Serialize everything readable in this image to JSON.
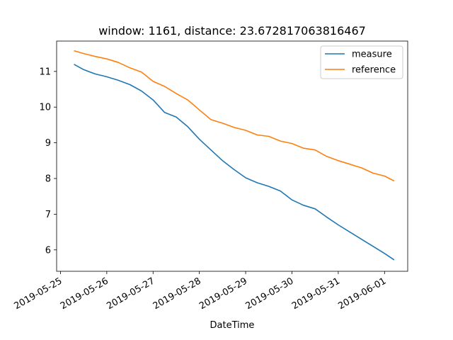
{
  "chart_data": {
    "type": "line",
    "title": "window: 1161, distance: 23.672817063816467",
    "xlabel": "DateTime",
    "ylabel": "",
    "x_ticks": [
      "2019-05-25",
      "2019-05-26",
      "2019-05-27",
      "2019-05-28",
      "2019-05-29",
      "2019-05-30",
      "2019-05-31",
      "2019-06-01"
    ],
    "y_ticks": [
      "6",
      "7",
      "8",
      "9",
      "10",
      "11"
    ],
    "xlim": [
      "2019-05-24T22:00",
      "2019-06-01T12:00"
    ],
    "ylim": [
      5.4,
      11.85
    ],
    "grid": false,
    "legend": "top-right",
    "series": [
      {
        "name": "measure",
        "color": "#1f77b4",
        "points": [
          [
            "2019-05-25T07:00",
            11.2
          ],
          [
            "2019-05-25T12:00",
            11.05
          ],
          [
            "2019-05-25T18:00",
            10.93
          ],
          [
            "2019-05-26T00:00",
            10.85
          ],
          [
            "2019-05-26T06:00",
            10.75
          ],
          [
            "2019-05-26T12:00",
            10.63
          ],
          [
            "2019-05-26T18:00",
            10.45
          ],
          [
            "2019-05-27T00:00",
            10.2
          ],
          [
            "2019-05-27T06:00",
            9.85
          ],
          [
            "2019-05-27T12:00",
            9.72
          ],
          [
            "2019-05-27T18:00",
            9.45
          ],
          [
            "2019-05-28T00:00",
            9.1
          ],
          [
            "2019-05-28T06:00",
            8.8
          ],
          [
            "2019-05-28T12:00",
            8.5
          ],
          [
            "2019-05-28T18:00",
            8.25
          ],
          [
            "2019-05-29T00:00",
            8.02
          ],
          [
            "2019-05-29T06:00",
            7.88
          ],
          [
            "2019-05-29T12:00",
            7.78
          ],
          [
            "2019-05-29T18:00",
            7.65
          ],
          [
            "2019-05-30T00:00",
            7.4
          ],
          [
            "2019-05-30T06:00",
            7.25
          ],
          [
            "2019-05-30T12:00",
            7.15
          ],
          [
            "2019-05-30T18:00",
            6.92
          ],
          [
            "2019-05-31T00:00",
            6.7
          ],
          [
            "2019-05-31T06:00",
            6.5
          ],
          [
            "2019-05-31T12:00",
            6.3
          ],
          [
            "2019-05-31T18:00",
            6.1
          ],
          [
            "2019-06-01T00:00",
            5.9
          ],
          [
            "2019-06-01T05:00",
            5.72
          ]
        ]
      },
      {
        "name": "reference",
        "color": "#ff7f0e",
        "points": [
          [
            "2019-05-25T07:00",
            11.58
          ],
          [
            "2019-05-25T12:00",
            11.5
          ],
          [
            "2019-05-25T18:00",
            11.42
          ],
          [
            "2019-05-26T00:00",
            11.35
          ],
          [
            "2019-05-26T06:00",
            11.25
          ],
          [
            "2019-05-26T12:00",
            11.1
          ],
          [
            "2019-05-26T18:00",
            10.98
          ],
          [
            "2019-05-27T00:00",
            10.72
          ],
          [
            "2019-05-27T06:00",
            10.58
          ],
          [
            "2019-05-27T12:00",
            10.38
          ],
          [
            "2019-05-27T18:00",
            10.2
          ],
          [
            "2019-05-28T00:00",
            9.92
          ],
          [
            "2019-05-28T06:00",
            9.65
          ],
          [
            "2019-05-28T12:00",
            9.55
          ],
          [
            "2019-05-28T18:00",
            9.43
          ],
          [
            "2019-05-29T00:00",
            9.35
          ],
          [
            "2019-05-29T06:00",
            9.22
          ],
          [
            "2019-05-29T12:00",
            9.18
          ],
          [
            "2019-05-29T18:00",
            9.05
          ],
          [
            "2019-05-30T00:00",
            8.98
          ],
          [
            "2019-05-30T06:00",
            8.85
          ],
          [
            "2019-05-30T12:00",
            8.8
          ],
          [
            "2019-05-30T18:00",
            8.62
          ],
          [
            "2019-05-31T00:00",
            8.5
          ],
          [
            "2019-05-31T06:00",
            8.4
          ],
          [
            "2019-05-31T12:00",
            8.3
          ],
          [
            "2019-05-31T18:00",
            8.15
          ],
          [
            "2019-06-01T00:00",
            8.07
          ],
          [
            "2019-06-01T05:00",
            7.93
          ]
        ]
      }
    ]
  }
}
